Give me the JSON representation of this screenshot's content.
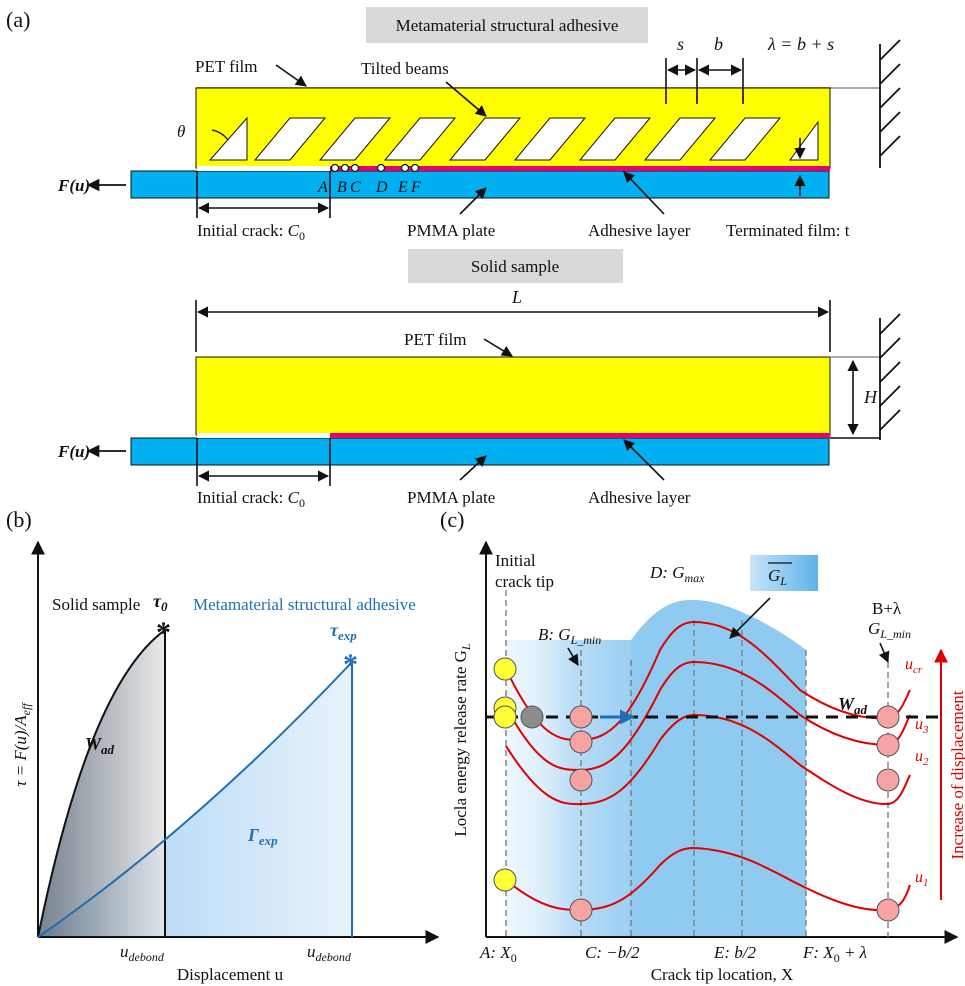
{
  "colors": {
    "pet": "#ffff00",
    "pmma": "#00b0f0",
    "adhesive": "#e8006e",
    "box": "#d9d9d9",
    "blue": "#1f6fb4",
    "red": "#e00000",
    "yellowBall": "#ffff33",
    "pinkBall": "#f6a3a3",
    "greyBall": "#8c8c8c"
  },
  "panelA": {
    "label": "(a)",
    "meta_box": "Metamaterial structural adhesive",
    "solid_box": "Solid sample",
    "pet_film": "PET film",
    "tilted_beams": "Tilted beams",
    "theta": "θ",
    "s": "s",
    "b": "b",
    "lambda_eq": "λ = b + s",
    "force": "F(u)",
    "letters": [
      "A",
      "B",
      "C",
      "D",
      "E",
      "F"
    ],
    "initial_crack": "Initial crack: ",
    "c0": "C",
    "c0_sub": "0",
    "pmma": "PMMA plate",
    "adhesive_layer": "Adhesive layer",
    "terminated": "Terminated film: t",
    "L": "L",
    "H": "H"
  },
  "panelB": {
    "label": "(b)",
    "ylabel": "τ = F(u)/A",
    "ylabel_sub": "eff",
    "xlabel": "Displacement u",
    "solid": "Solid sample",
    "meta": "Metamaterial structural adhesive",
    "tau0": "τ",
    "tau0_sub": "0",
    "tauexp": "τ",
    "tauexp_sub": "exp",
    "wad": "W",
    "wad_sub": "ad",
    "gamma": "Γ",
    "gamma_sub": "exp",
    "tick1": "u",
    "tick1_sub": "debond",
    "tick2": "u",
    "tick2_sub": "debond"
  },
  "panelC": {
    "label": "(c)",
    "ylabel": "Locla energy release rate G",
    "ylabel_sub": "L",
    "xlabel": "Crack tip location, X",
    "initial1": "Initial",
    "initial2": "crack tip",
    "gmin": "B: G",
    "gmin_sub": "L_min",
    "gmax": "D: G",
    "gmax_sub": "max",
    "gbar": "G",
    "gbar_sub": "L",
    "blam": "B+λ",
    "gmin2": "G",
    "gmin2_sub": "L_min",
    "wad": "W",
    "wad_sub": "ad",
    "ucr": "u",
    "ucr_sub": "cr",
    "u3": "u",
    "u3_sub": "3",
    "u2": "u",
    "u2_sub": "2",
    "u1": "u",
    "u1_sub": "1",
    "increase": "Increase of displacement",
    "ticks": [
      "A: X",
      "C: −b/2",
      "E: b/2",
      "F: X"
    ],
    "tickA_sub": "0",
    "tickF_sub": "0",
    "tickF_tail": " + λ"
  }
}
